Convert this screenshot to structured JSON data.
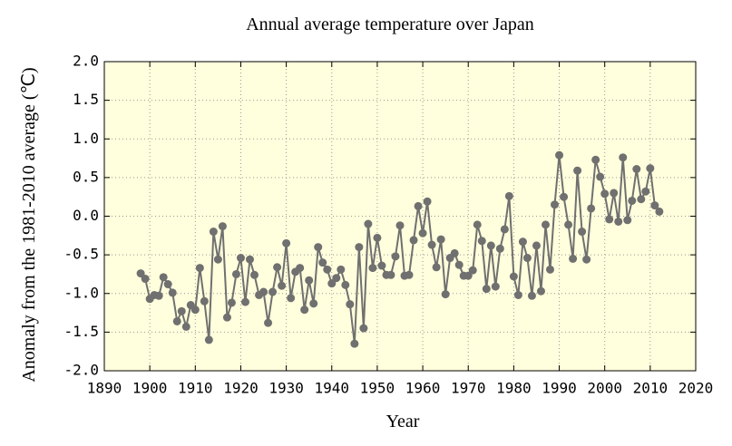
{
  "chart_data": {
    "type": "line",
    "title": "Annual average temperature over Japan",
    "xlabel": "Year",
    "ylabel": "Anomaly from the 1981-2010 average (℃)",
    "x": [
      1898,
      1899,
      1900,
      1901,
      1902,
      1903,
      1904,
      1905,
      1906,
      1907,
      1908,
      1909,
      1910,
      1911,
      1912,
      1913,
      1914,
      1915,
      1916,
      1917,
      1918,
      1919,
      1920,
      1921,
      1922,
      1923,
      1924,
      1925,
      1926,
      1927,
      1928,
      1929,
      1930,
      1931,
      1932,
      1933,
      1934,
      1935,
      1936,
      1937,
      1938,
      1939,
      1940,
      1941,
      1942,
      1943,
      1944,
      1945,
      1946,
      1947,
      1948,
      1949,
      1950,
      1951,
      1952,
      1953,
      1954,
      1955,
      1956,
      1957,
      1958,
      1959,
      1960,
      1961,
      1962,
      1963,
      1964,
      1965,
      1966,
      1967,
      1968,
      1969,
      1970,
      1971,
      1972,
      1973,
      1974,
      1975,
      1976,
      1977,
      1978,
      1979,
      1980,
      1981,
      1982,
      1983,
      1984,
      1985,
      1986,
      1987,
      1988,
      1989,
      1990,
      1991,
      1992,
      1993,
      1994,
      1995,
      1996,
      1997,
      1998,
      1999,
      2000,
      2001,
      2002,
      2003,
      2004,
      2005,
      2006,
      2007,
      2008,
      2009,
      2010,
      2011,
      2012
    ],
    "values": [
      -0.74,
      -0.81,
      -1.07,
      -1.02,
      -1.03,
      -0.79,
      -0.88,
      -0.99,
      -1.36,
      -1.23,
      -1.43,
      -1.15,
      -1.21,
      -0.67,
      -1.1,
      -1.6,
      -0.2,
      -0.56,
      -0.13,
      -1.31,
      -1.12,
      -0.75,
      -0.54,
      -1.11,
      -0.56,
      -0.76,
      -1.02,
      -0.98,
      -1.38,
      -0.98,
      -0.66,
      -0.9,
      -0.35,
      -1.06,
      -0.72,
      -0.67,
      -1.21,
      -0.83,
      -1.13,
      -0.4,
      -0.6,
      -0.69,
      -0.87,
      -0.8,
      -0.69,
      -0.89,
      -1.14,
      -1.65,
      -0.4,
      -1.45,
      -0.1,
      -0.67,
      -0.28,
      -0.64,
      -0.76,
      -0.76,
      -0.52,
      -0.12,
      -0.77,
      -0.76,
      -0.31,
      0.13,
      -0.22,
      0.19,
      -0.37,
      -0.66,
      -0.3,
      -1.01,
      -0.54,
      -0.48,
      -0.63,
      -0.77,
      -0.77,
      -0.7,
      -0.11,
      -0.32,
      -0.94,
      -0.38,
      -0.91,
      -0.42,
      -0.17,
      0.26,
      -0.78,
      -1.02,
      -0.33,
      -0.54,
      -1.03,
      -0.38,
      -0.97,
      -0.11,
      -0.69,
      0.15,
      0.79,
      0.25,
      -0.11,
      -0.55,
      0.59,
      -0.2,
      -0.56,
      0.1,
      0.73,
      0.51,
      0.29,
      -0.04,
      0.3,
      -0.07,
      0.76,
      -0.05,
      0.2,
      0.61,
      0.22,
      0.32,
      0.62,
      0.14,
      0.06
    ],
    "color": "#707070",
    "xlim": [
      1890,
      2020
    ],
    "xticks": [
      1890,
      1900,
      1910,
      1920,
      1930,
      1940,
      1950,
      1960,
      1970,
      1980,
      1990,
      2000,
      2010,
      2020
    ],
    "ylim": [
      -2,
      2
    ],
    "yticks": [
      {
        "value": 2,
        "label": "2.0"
      },
      1.5,
      {
        "value": 1,
        "label": "1.0"
      },
      0.5,
      {
        "value": 0,
        "label": "0.0"
      },
      -0.5,
      {
        "value": -1,
        "label": "-1.0"
      },
      -1.5,
      {
        "value": -2,
        "label": "-2.0"
      }
    ],
    "grid": true
  }
}
